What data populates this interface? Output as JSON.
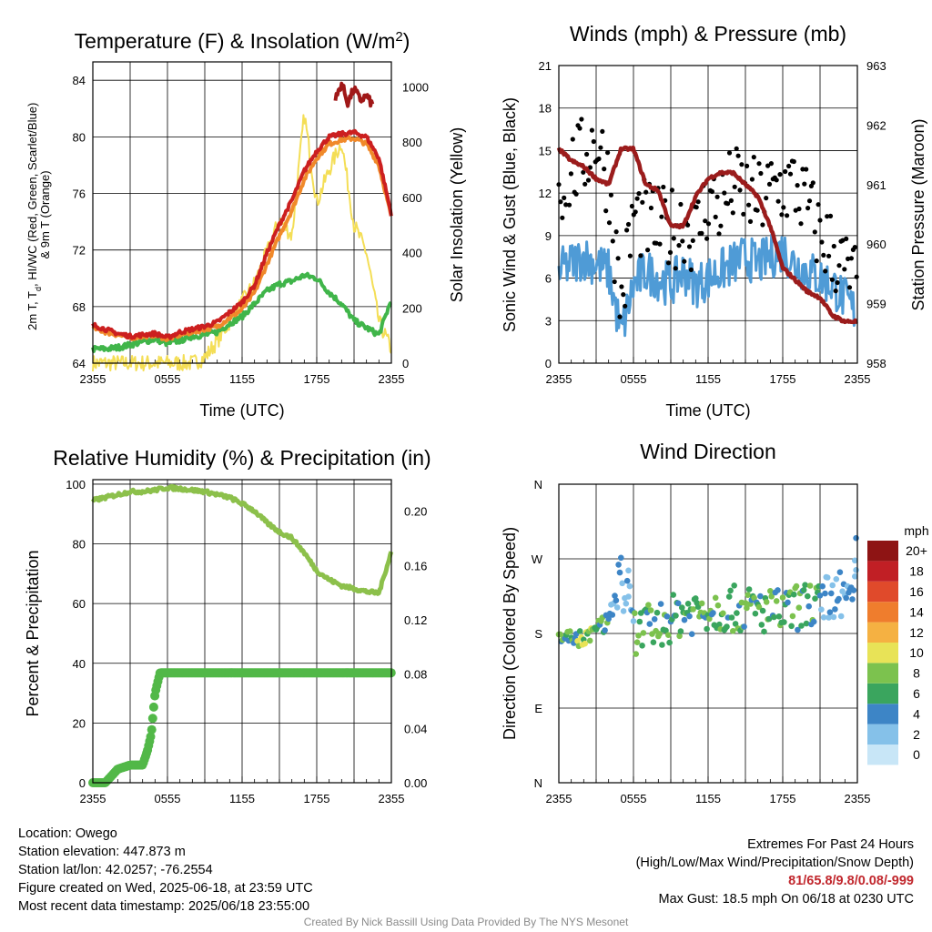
{
  "chart_data": [
    {
      "type": "line",
      "title": "Temperature (F) & Insolation (W/m²)",
      "xlabel": "Time (UTC)",
      "ylabel_left_lines": [
        "2m T, T",
        "d",
        ", HI/WC (Red, Green, Scarlet/Blue)",
        "& 9m T (Orange)"
      ],
      "ylabel_right": "Solar Insolation (Yellow)",
      "x_ticks": [
        "2355",
        "0555",
        "1155",
        "1755",
        "2355"
      ],
      "y_left_ticks": [
        "64",
        "68",
        "72",
        "76",
        "80",
        "84"
      ],
      "y_left_range": [
        64,
        85.3
      ],
      "y_right_ticks": [
        "0",
        "200",
        "400",
        "600",
        "800",
        "1000"
      ],
      "y_right_range": [
        0,
        1090
      ],
      "x_hours": [
        0,
        1,
        2,
        3,
        4,
        5,
        6,
        7,
        8,
        9,
        10,
        11,
        12,
        13,
        14,
        15,
        16,
        17,
        18,
        19,
        20,
        21,
        22,
        23,
        24
      ],
      "series": [
        {
          "name": "2m T",
          "color": "#cc1f1f",
          "values": [
            66.7,
            66.4,
            66.1,
            65.9,
            66.0,
            66.1,
            65.8,
            66.2,
            66.4,
            66.6,
            66.9,
            67.6,
            68.3,
            69.5,
            71.8,
            73.8,
            75.5,
            77.6,
            79.0,
            80.0,
            80.2,
            80.3,
            80.0,
            78.5,
            74.5
          ]
        },
        {
          "name": "9m T",
          "color": "#f0892a",
          "values": [
            66.5,
            66.2,
            66.0,
            65.8,
            65.9,
            66.0,
            65.7,
            66.0,
            66.2,
            66.4,
            66.6,
            67.2,
            67.8,
            69.0,
            71.0,
            73.0,
            74.8,
            77.0,
            78.5,
            79.5,
            79.8,
            79.9,
            79.5,
            78.0,
            74.3
          ]
        },
        {
          "name": "Td",
          "color": "#40b54a",
          "values": [
            65.0,
            65.0,
            65.1,
            65.3,
            65.5,
            65.7,
            65.4,
            65.6,
            65.9,
            66.0,
            66.2,
            66.8,
            67.3,
            68.2,
            69.1,
            69.6,
            69.8,
            70.2,
            70.0,
            69.0,
            68.2,
            67.0,
            66.5,
            66.0,
            68.5
          ]
        },
        {
          "name": "HI",
          "color": "#a01818",
          "hours": [
            19.5,
            20,
            20.5,
            21,
            21.5,
            22,
            22.5
          ],
          "values": [
            82.6,
            83.8,
            82.4,
            83.4,
            82.6,
            82.9,
            82.2
          ]
        },
        {
          "name": "Solar",
          "color": "#f4de56",
          "axis": "right",
          "values": [
            0,
            0,
            0,
            0,
            0,
            0,
            0,
            0,
            0,
            20,
            80,
            150,
            220,
            290,
            400,
            520,
            460,
            900,
            580,
            700,
            800,
            500,
            400,
            150,
            50
          ]
        }
      ]
    },
    {
      "type": "line",
      "title": "Winds (mph) & Pressure (mb)",
      "xlabel": "Time (UTC)",
      "ylabel_left": "Sonic Wind & Gust (Blue, Black)",
      "ylabel_right": "Station Pressure (Maroon)",
      "x_ticks": [
        "2355",
        "0555",
        "1155",
        "1755",
        "2355"
      ],
      "y_left_ticks": [
        "0",
        "3",
        "6",
        "9",
        "12",
        "15",
        "18",
        "21"
      ],
      "y_left_range": [
        0,
        21
      ],
      "y_right_ticks": [
        "958",
        "959",
        "960",
        "961",
        "962",
        "963"
      ],
      "y_right_range": [
        958,
        963
      ],
      "x_hours": [
        0,
        1,
        2,
        3,
        4,
        5,
        6,
        7,
        8,
        9,
        10,
        11,
        12,
        13,
        14,
        15,
        16,
        17,
        18,
        19,
        20,
        21,
        22,
        23,
        24
      ],
      "series": [
        {
          "name": "Wind",
          "color": "#4f9bd6",
          "values": [
            6.5,
            7.0,
            7.5,
            7.0,
            6.5,
            2.0,
            5.5,
            6.5,
            6.0,
            5.5,
            6.5,
            5.5,
            6.0,
            6.5,
            7.0,
            7.5,
            7.0,
            7.5,
            8.0,
            7.0,
            6.5,
            6.0,
            5.5,
            4.5,
            3.5
          ]
        },
        {
          "name": "Gust",
          "color": "#000000",
          "values": [
            12.5,
            13.5,
            14.5,
            16.0,
            13.0,
            4.0,
            10.5,
            10.0,
            9.5,
            9.5,
            10.0,
            9.0,
            11.5,
            11.0,
            12.5,
            12.0,
            11.5,
            12.0,
            12.5,
            12.5,
            11.0,
            9.0,
            8.0,
            6.5,
            5.5
          ]
        },
        {
          "name": "Pressure",
          "color": "#9b1c1c",
          "axis": "right",
          "values": [
            961.6,
            961.4,
            961.3,
            961.1,
            961.0,
            961.6,
            961.6,
            961.0,
            960.9,
            960.3,
            960.3,
            960.8,
            961.1,
            961.2,
            961.2,
            961.0,
            960.8,
            960.3,
            959.6,
            959.4,
            959.2,
            959.1,
            958.8,
            958.7,
            958.7
          ]
        }
      ]
    },
    {
      "type": "line",
      "title": "Relative Humidity (%) & Precipitation (in)",
      "xlabel": "",
      "ylabel_left": "Percent & Precipitation",
      "x_ticks": [
        "2355",
        "0555",
        "1155",
        "1755",
        "2355"
      ],
      "y_left_ticks": [
        "0",
        "20",
        "40",
        "60",
        "80",
        "100"
      ],
      "y_left_range": [
        0,
        101.5
      ],
      "y_right_ticks": [
        "0.00",
        "0.04",
        "0.08",
        "0.12",
        "0.16",
        "0.20"
      ],
      "y_right_range": [
        0,
        0.2233
      ],
      "x_hours": [
        0,
        1,
        2,
        3,
        4,
        5,
        6,
        7,
        8,
        9,
        10,
        11,
        12,
        13,
        14,
        15,
        16,
        17,
        18,
        19,
        20,
        21,
        22,
        23,
        24
      ],
      "series": [
        {
          "name": "RH",
          "color": "#8cc04b",
          "values": [
            94.5,
            95.5,
            96.5,
            97.5,
            97.5,
            98.0,
            98.8,
            98.5,
            98.0,
            97.5,
            96.5,
            95.5,
            93.5,
            91.0,
            87.0,
            84.0,
            82.0,
            77.0,
            71.0,
            68.0,
            66.0,
            65.0,
            64.0,
            63.5,
            77.5
          ]
        },
        {
          "name": "Precipitation",
          "color": "#52b848",
          "axis": "right",
          "hours": [
            0,
            1.0,
            1.5,
            2.0,
            3.0,
            4.0,
            4.4,
            4.7,
            5.0,
            5.4,
            6,
            24
          ],
          "values": [
            0.0,
            0.0,
            0.005,
            0.01,
            0.013,
            0.013,
            0.024,
            0.036,
            0.066,
            0.081,
            0.081,
            0.081
          ]
        }
      ]
    },
    {
      "type": "scatter",
      "title": "Wind Direction",
      "ylabel_left": "Direction (Colored By Speed)",
      "x_ticks": [
        "2355",
        "0555",
        "1155",
        "1755",
        "2355"
      ],
      "y_ticks": [
        "N",
        "E",
        "S",
        "W",
        "N"
      ],
      "y_range_degrees": [
        0,
        360
      ],
      "legend_title": "mph",
      "legend_labels": [
        "0",
        "2",
        "4",
        "6",
        "8",
        "10",
        "12",
        "14",
        "16",
        "18",
        "20+"
      ],
      "legend_colors": [
        "#c8e6f7",
        "#85c1e9",
        "#3d85c6",
        "#3aa55e",
        "#7cc24e",
        "#e8e357",
        "#f5b142",
        "#ef7d2d",
        "#e04a2b",
        "#c11f25",
        "#8e1414"
      ],
      "trend_hours": [
        0,
        2,
        4,
        5,
        6,
        8,
        10,
        12,
        14,
        16,
        18,
        20,
        22,
        24
      ],
      "trend_degrees": [
        178,
        172,
        195,
        250,
        182,
        190,
        205,
        210,
        210,
        208,
        205,
        215,
        225,
        235
      ],
      "peak_points": [
        {
          "hour": 5.6,
          "deg": 256,
          "mph": 2
        },
        {
          "hour": 23.9,
          "deg": 295,
          "mph": 4
        },
        {
          "hour": 23.8,
          "deg": 268,
          "mph": 2
        }
      ]
    }
  ],
  "footer": {
    "location": "Location: Owego",
    "elevation": "Station elevation: 447.873 m",
    "latlon": "Station lat/lon: 42.0257; -76.2554",
    "created": "Figure created on Wed, 2025-06-18, at 23:59 UTC",
    "recent": "Most recent data timestamp: 2025/06/18 23:55:00",
    "extremes_title": "Extremes For Past 24 Hours",
    "extremes_desc": "(High/Low/Max Wind/Precipitation/Snow Depth)",
    "extremes_values": "81/65.8/9.8/0.08/-999",
    "max_gust": "Max Gust: 18.5 mph On 06/18 at 0230 UTC",
    "credit": "Created By Nick Bassill Using Data Provided By The NYS Mesonet"
  }
}
